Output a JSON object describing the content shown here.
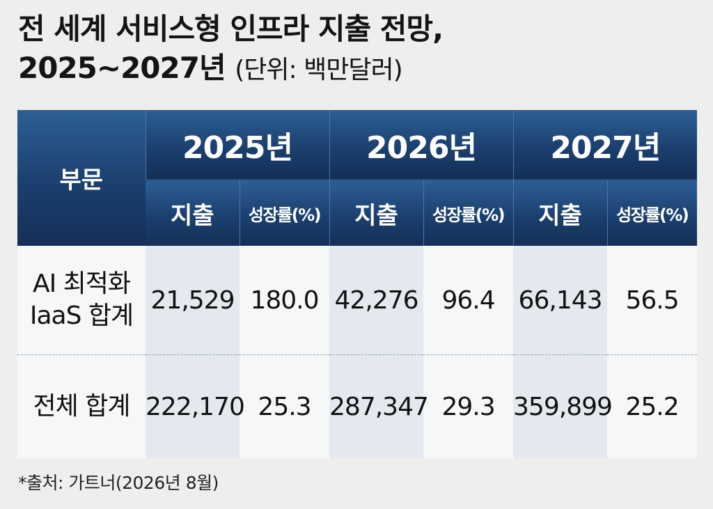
{
  "title": {
    "line1": "전 세계 서비스형 인프라 지출 전망,",
    "line2": "2025~2027년",
    "unit": "(단위: 백만달러)"
  },
  "source": "*출처: 가트너(2026년 8월)",
  "chart_data": {
    "type": "table",
    "title": "전 세계 서비스형 인프라 지출 전망, 2025~2027년",
    "unit": "(단위: 백만달러)",
    "row_header": "부문",
    "years": [
      "2025년",
      "2026년",
      "2027년"
    ],
    "sub_headers": [
      "지출",
      "성장률(%)",
      "지출",
      "성장률(%)",
      "지출",
      "성장률(%)"
    ],
    "rows": [
      {
        "sector_lines": [
          "AI 최적화",
          "IaaS 합계"
        ],
        "cells": [
          "21,529",
          "180.0",
          "42,276",
          "96.4",
          "66,143",
          "56.5"
        ]
      },
      {
        "sector_lines": [
          "전체 합계"
        ],
        "cells": [
          "222,170",
          "25.3",
          "287,347",
          "29.3",
          "359,899",
          "25.2"
        ]
      }
    ]
  }
}
